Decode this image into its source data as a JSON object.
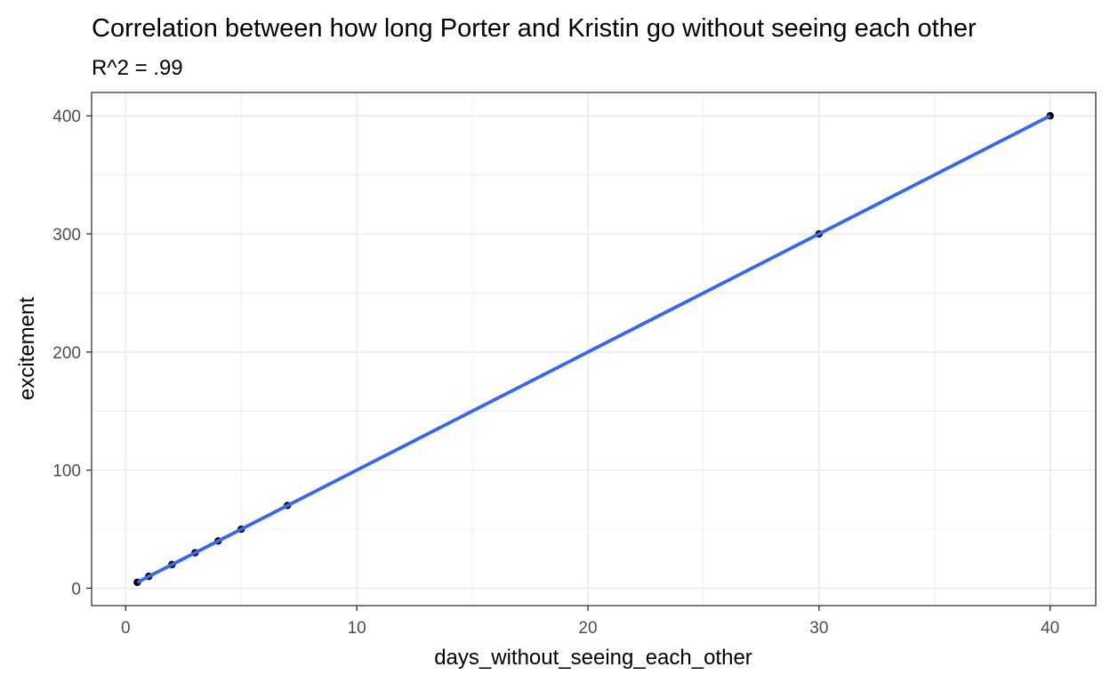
{
  "chart_data": {
    "type": "scatter",
    "title": "Correlation between how long Porter and Kristin go without seeing each other",
    "subtitle": "R^2 = .99",
    "xlabel": "days_without_seeing_each_other",
    "ylabel": "excitement",
    "xlim": [
      -1.475,
      41.975
    ],
    "ylim": [
      -14.75,
      419.75
    ],
    "x_ticks": [
      0,
      10,
      20,
      30,
      40
    ],
    "y_ticks": [
      0,
      100,
      200,
      300,
      400
    ],
    "x_minor_ticks": [
      5,
      15,
      25,
      35
    ],
    "y_minor_ticks": [
      50,
      150,
      250,
      350
    ],
    "grid": true,
    "legend": "none",
    "series": [
      {
        "type": "scatter",
        "color": "#000000",
        "points": [
          {
            "x": 0.5,
            "y": 5
          },
          {
            "x": 1,
            "y": 10
          },
          {
            "x": 2,
            "y": 20
          },
          {
            "x": 3,
            "y": 30
          },
          {
            "x": 4,
            "y": 40
          },
          {
            "x": 5,
            "y": 50
          },
          {
            "x": 7,
            "y": 70
          },
          {
            "x": 30,
            "y": 300
          },
          {
            "x": 40,
            "y": 400
          }
        ]
      },
      {
        "type": "line",
        "color": "#3366ff",
        "points": [
          {
            "x": 0.5,
            "y": 5
          },
          {
            "x": 40,
            "y": 400
          }
        ]
      }
    ]
  }
}
